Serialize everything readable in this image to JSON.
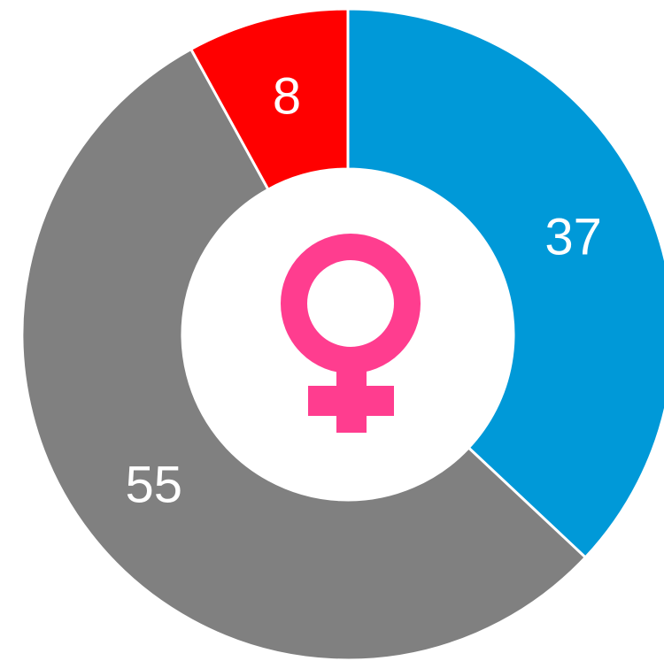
{
  "chart_data": {
    "type": "donut",
    "values": [
      37,
      55,
      8
    ],
    "colors": [
      "#0099d8",
      "#808080",
      "#ff0000"
    ]
  }
}
